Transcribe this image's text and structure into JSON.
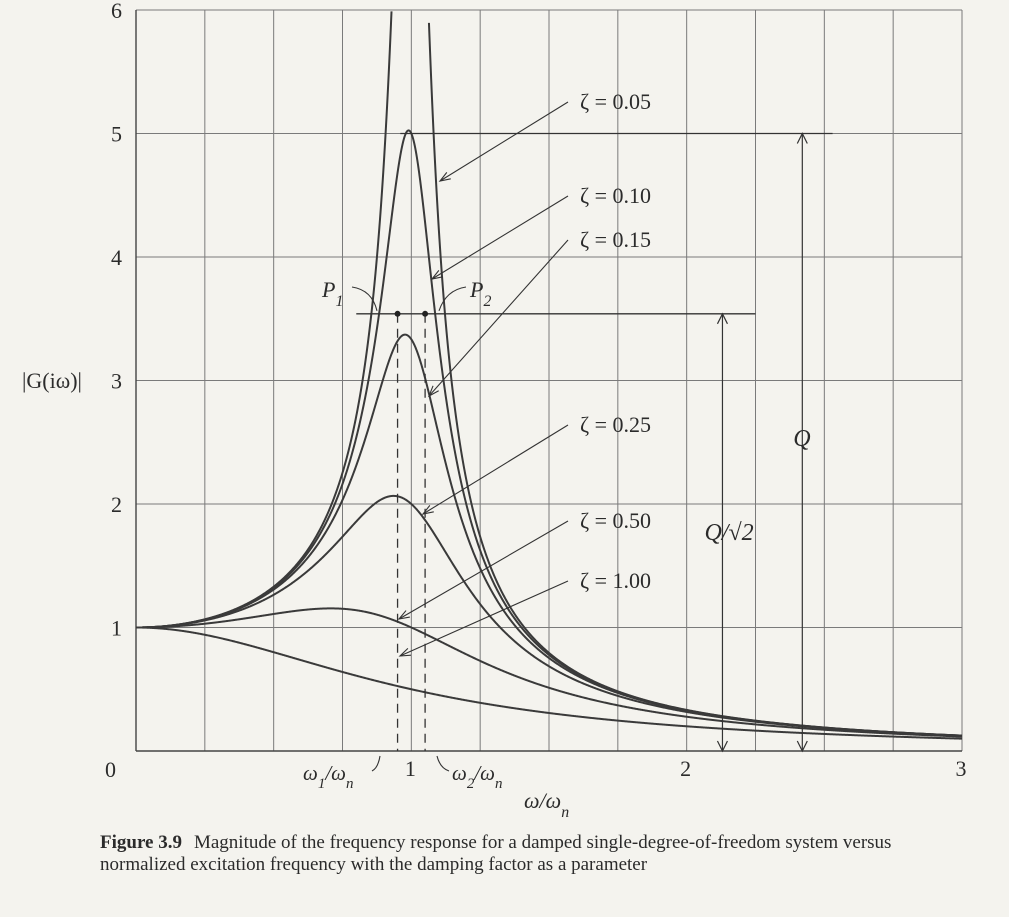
{
  "chart_data": {
    "type": "line",
    "x_range": [
      0,
      3
    ],
    "y_range": [
      0,
      6
    ],
    "x_ticks": [
      "1",
      "2",
      "3"
    ],
    "y_ticks": [
      "0",
      "1",
      "2",
      "3",
      "4",
      "5",
      "6"
    ],
    "xlabel": "ω/ω",
    "xlabel_sub": "n",
    "ylabel": "|G(iω)|",
    "grid": true,
    "series": [
      {
        "name": "ζ = 0.05",
        "zeta": 0.05
      },
      {
        "name": "ζ = 0.10",
        "zeta": 0.1
      },
      {
        "name": "ζ = 0.15",
        "zeta": 0.15
      },
      {
        "name": "ζ = 0.25",
        "zeta": 0.25
      },
      {
        "name": "ζ = 0.50",
        "zeta": 0.5
      },
      {
        "name": "ζ = 1.00",
        "zeta": 1.0
      }
    ],
    "half_power": {
      "level": 3.54,
      "omega1": 0.95,
      "omega2": 1.05,
      "P1_label": "P",
      "P1_sub": "1",
      "P2_label": "P",
      "P2_sub": "2",
      "omega1_label": "ω",
      "omega1_sub": "1",
      "omega2_label": "ω",
      "omega2_sub": "2",
      "ratio_sep": "/ω",
      "ratio_sub": "n"
    },
    "annotations": {
      "Q": "Q",
      "Q_sqrt2": "Q/√2",
      "Q_level": 5.0
    }
  },
  "caption": {
    "label": "Figure 3.9",
    "text": "Magnitude of the frequency response for a damped single-degree-of-freedom system versus normalized excitation frequency with the damping factor as a parameter"
  }
}
